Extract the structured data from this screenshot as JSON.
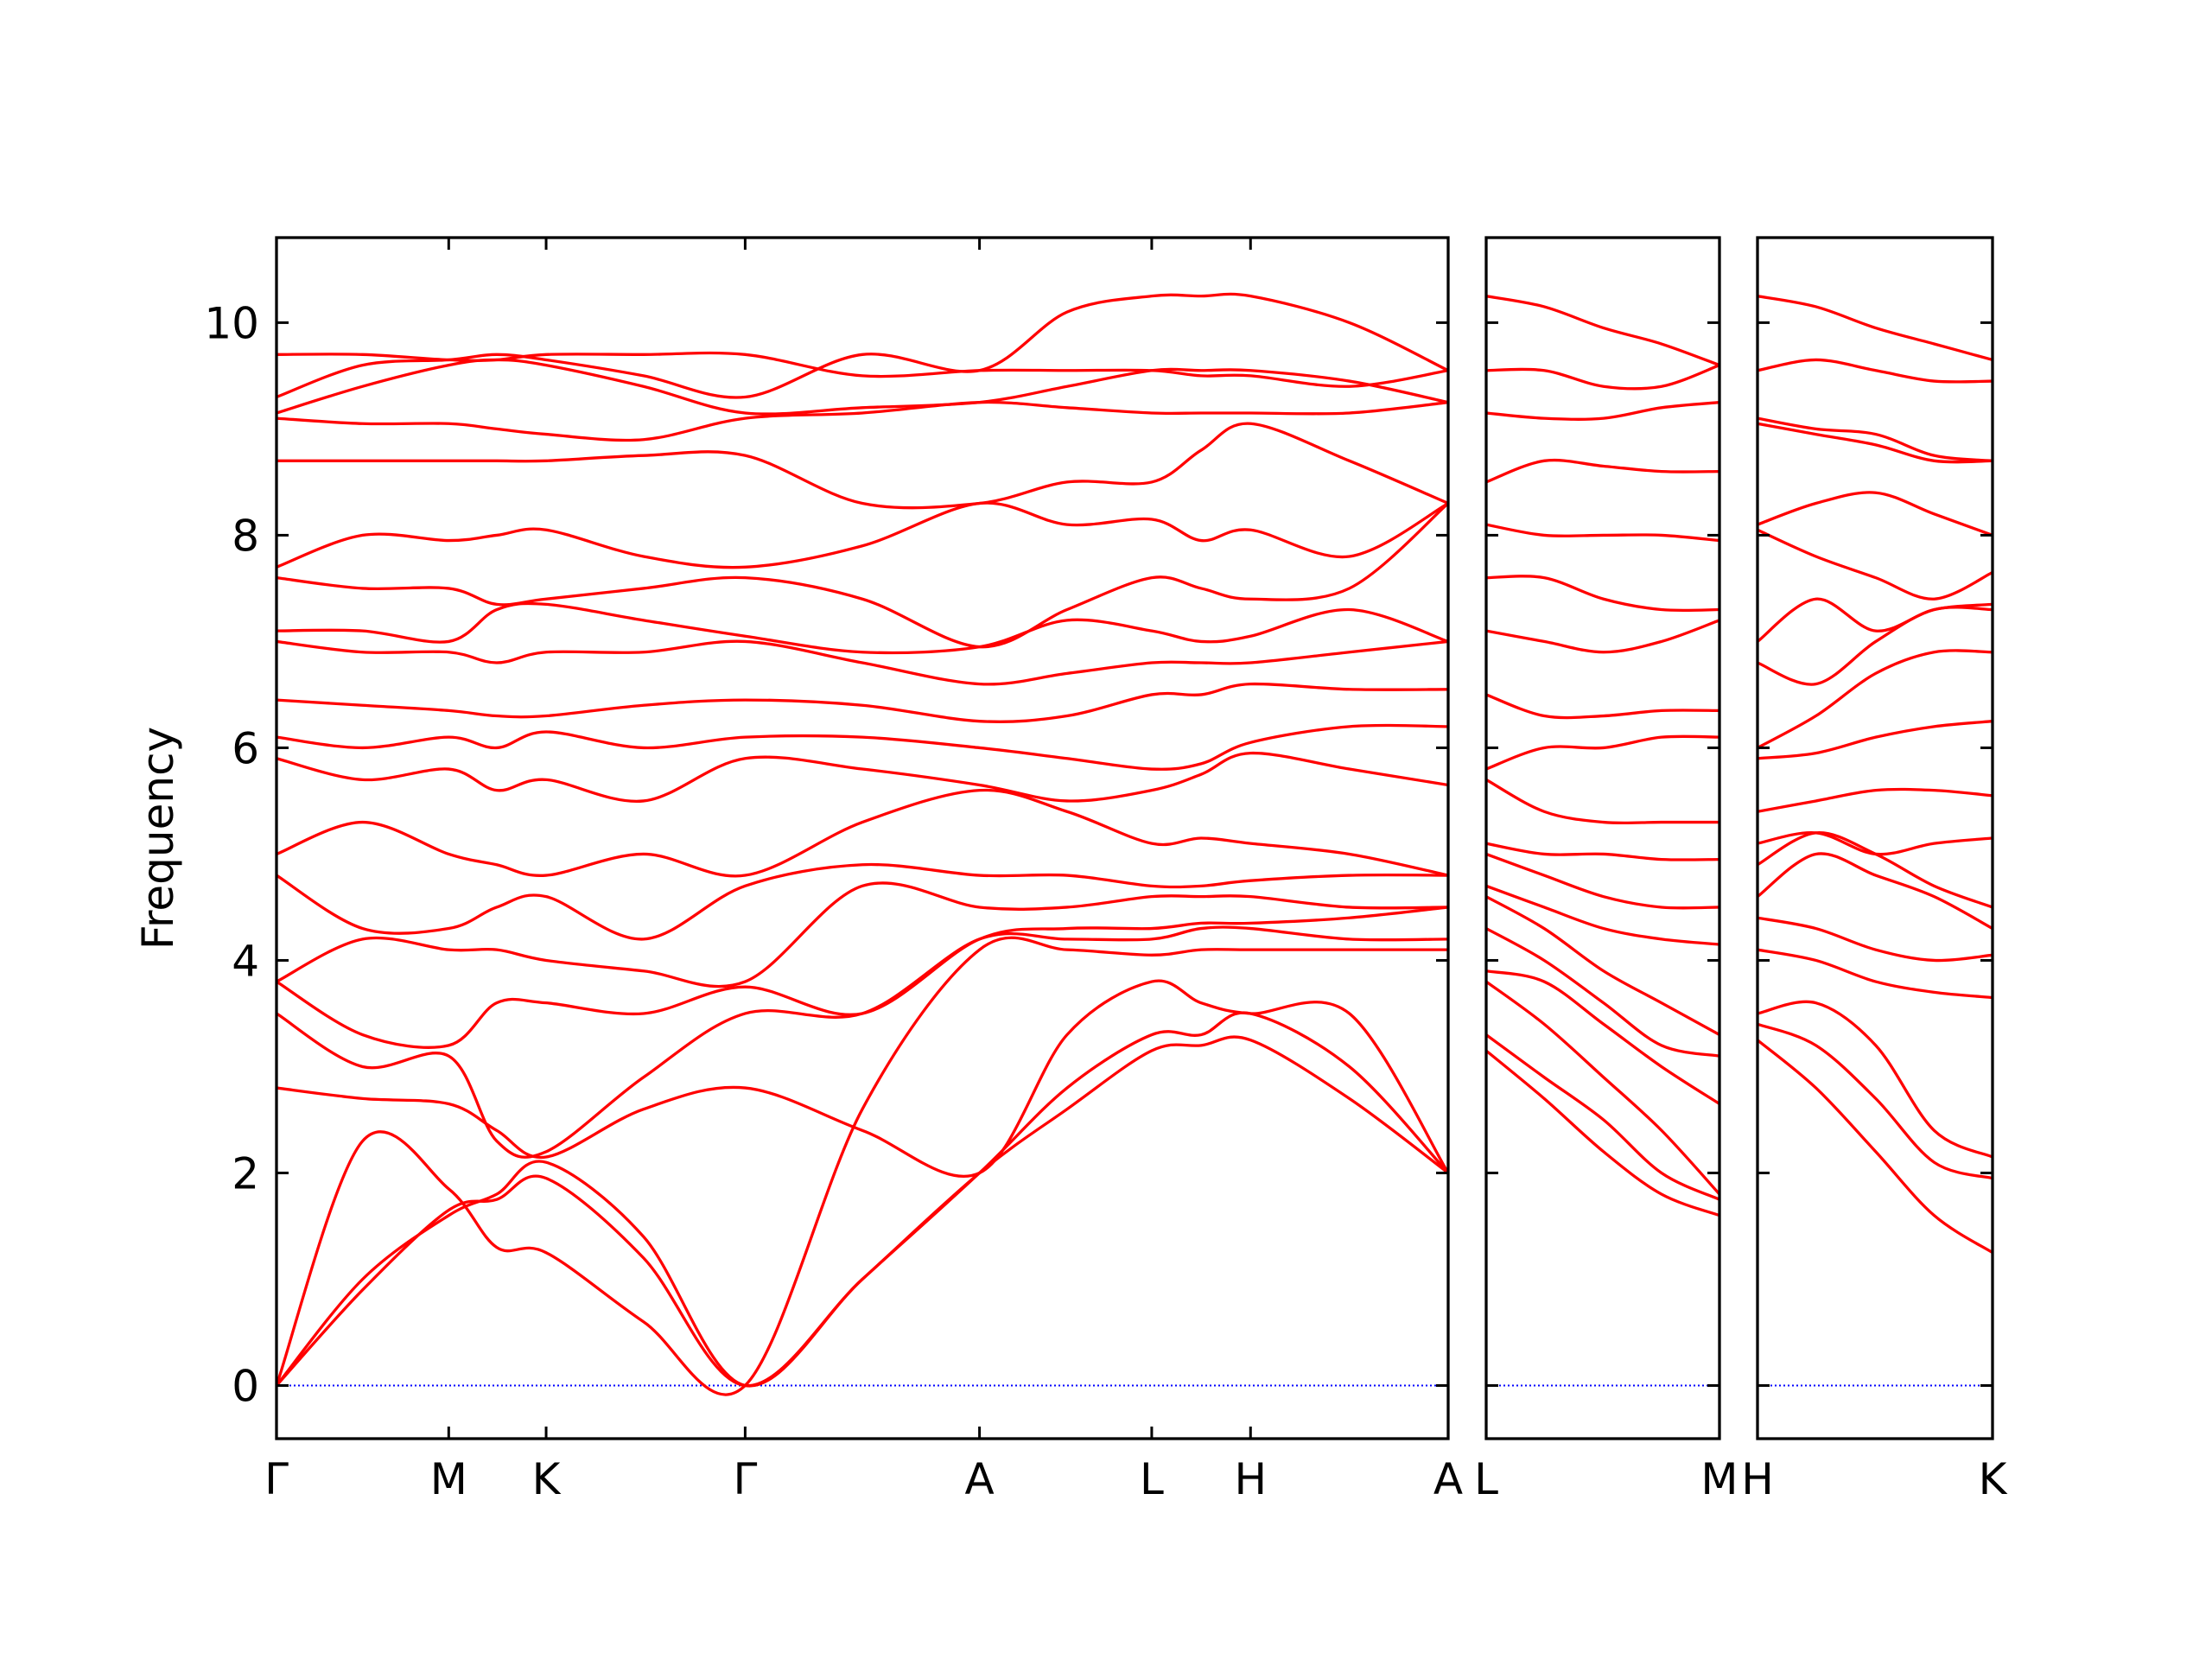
{
  "chart_data": [
    {
      "type": "line",
      "ylabel": "Frequency",
      "color": "#ff0000",
      "ylim": [
        -0.5,
        10.8
      ],
      "yticks": [
        0,
        2,
        4,
        6,
        8,
        10
      ],
      "show_ytick_labels": true,
      "zero_line": {
        "value": 0,
        "color": "#0000ff"
      },
      "xlim": [
        0,
        8.3
      ],
      "xticks": [
        {
          "value": 0,
          "label": "Γ"
        },
        {
          "value": 1.22,
          "label": "M"
        },
        {
          "value": 1.91,
          "label": "K"
        },
        {
          "value": 3.32,
          "label": "Γ"
        },
        {
          "value": 4.98,
          "label": "A"
        },
        {
          "value": 6.2,
          "label": "L"
        },
        {
          "value": 6.9,
          "label": "H"
        },
        {
          "value": 8.3,
          "label": "A"
        }
      ],
      "x": [
        0,
        0.61,
        1.22,
        1.56,
        1.91,
        2.6,
        3.32,
        4.15,
        4.98,
        5.6,
        6.2,
        6.55,
        6.9,
        7.6,
        8.3
      ],
      "series": [
        {
          "values": [
            0,
            0.9,
            1.65,
            1.75,
            1.95,
            1.2,
            0,
            1.0,
            2.0,
            2.6,
            3.15,
            3.2,
            3.25,
            2.7,
            2.0
          ]
        },
        {
          "values": [
            0,
            1.0,
            1.6,
            1.8,
            2.1,
            1.4,
            0,
            1.0,
            2.0,
            2.8,
            3.3,
            3.3,
            3.5,
            3.0,
            2.0
          ]
        },
        {
          "values": [
            0,
            2.3,
            1.85,
            1.3,
            1.25,
            0.6,
            0,
            2.6,
            4.1,
            4.1,
            4.05,
            4.1,
            4.1,
            4.1,
            4.1
          ]
        },
        {
          "values": [
            2.8,
            2.7,
            2.65,
            2.4,
            2.15,
            2.6,
            2.8,
            2.4,
            2.0,
            3.3,
            3.8,
            3.6,
            3.5,
            3.5,
            2.0
          ]
        },
        {
          "values": [
            3.5,
            3.0,
            3.1,
            2.3,
            2.2,
            2.9,
            3.5,
            3.5,
            4.2,
            4.2,
            4.2,
            4.3,
            4.3,
            4.2,
            4.2
          ]
        },
        {
          "values": [
            3.8,
            3.3,
            3.2,
            3.6,
            3.6,
            3.5,
            3.75,
            3.5,
            4.2,
            4.3,
            4.3,
            4.35,
            4.35,
            4.4,
            4.5
          ]
        },
        {
          "values": [
            3.8,
            4.2,
            4.1,
            4.1,
            4.0,
            3.9,
            3.8,
            4.7,
            4.5,
            4.5,
            4.6,
            4.6,
            4.6,
            4.5,
            4.5
          ]
        },
        {
          "values": [
            4.8,
            4.3,
            4.3,
            4.5,
            4.6,
            4.2,
            4.7,
            4.9,
            4.8,
            4.8,
            4.7,
            4.7,
            4.75,
            4.8,
            4.8
          ]
        },
        {
          "values": [
            5.0,
            5.3,
            5.0,
            4.9,
            4.8,
            5.0,
            4.8,
            5.3,
            5.6,
            5.4,
            5.1,
            5.15,
            5.1,
            5.0,
            4.8
          ]
        },
        {
          "values": [
            5.9,
            5.7,
            5.8,
            5.6,
            5.7,
            5.5,
            5.9,
            5.8,
            5.65,
            5.5,
            5.6,
            5.75,
            5.95,
            5.8,
            5.65
          ]
        },
        {
          "values": [
            6.1,
            6.0,
            6.1,
            6.0,
            6.15,
            6.0,
            6.1,
            6.1,
            6.0,
            5.9,
            5.8,
            5.85,
            6.05,
            6.2,
            6.2
          ]
        },
        {
          "values": [
            6.45,
            6.4,
            6.35,
            6.3,
            6.3,
            6.4,
            6.45,
            6.4,
            6.25,
            6.3,
            6.5,
            6.5,
            6.6,
            6.55,
            6.55
          ]
        },
        {
          "values": [
            7.0,
            6.9,
            6.9,
            6.8,
            6.9,
            6.9,
            7.0,
            6.8,
            6.6,
            6.7,
            6.8,
            6.8,
            6.8,
            6.9,
            7.0
          ]
        },
        {
          "values": [
            7.1,
            7.1,
            7.0,
            7.3,
            7.35,
            7.2,
            7.05,
            6.9,
            6.95,
            7.2,
            7.1,
            7.0,
            7.05,
            7.3,
            7.0
          ]
        },
        {
          "values": [
            7.6,
            7.5,
            7.5,
            7.35,
            7.4,
            7.5,
            7.6,
            7.4,
            6.95,
            7.3,
            7.6,
            7.5,
            7.4,
            7.5,
            8.3
          ]
        },
        {
          "values": [
            7.7,
            8.0,
            7.95,
            8.0,
            8.05,
            7.8,
            7.7,
            7.9,
            8.3,
            8.1,
            8.15,
            7.95,
            8.05,
            7.8,
            8.3
          ]
        },
        {
          "values": [
            8.7,
            8.7,
            8.7,
            8.7,
            8.7,
            8.75,
            8.75,
            8.3,
            8.3,
            8.5,
            8.5,
            8.8,
            9.05,
            8.7,
            8.3
          ]
        },
        {
          "values": [
            9.1,
            9.05,
            9.05,
            9.0,
            8.95,
            8.9,
            9.1,
            9.15,
            9.25,
            9.2,
            9.15,
            9.15,
            9.15,
            9.15,
            9.25
          ]
        },
        {
          "values": [
            9.15,
            9.4,
            9.6,
            9.65,
            9.6,
            9.4,
            9.15,
            9.2,
            9.25,
            9.4,
            9.55,
            9.55,
            9.55,
            9.45,
            9.25
          ]
        },
        {
          "values": [
            9.3,
            9.6,
            9.65,
            9.7,
            9.65,
            9.5,
            9.3,
            9.7,
            9.55,
            10.1,
            10.25,
            10.25,
            10.25,
            10.0,
            9.55
          ]
        },
        {
          "values": [
            9.7,
            9.7,
            9.65,
            9.65,
            9.7,
            9.7,
            9.7,
            9.5,
            9.55,
            9.55,
            9.55,
            9.5,
            9.5,
            9.4,
            9.55
          ]
        }
      ]
    },
    {
      "type": "line",
      "color": "#ff0000",
      "ylim": [
        -0.5,
        10.8
      ],
      "yticks": [
        0,
        2,
        4,
        6,
        8,
        10
      ],
      "show_ytick_labels": false,
      "zero_line": {
        "value": 0,
        "color": "#0000ff"
      },
      "xlim": [
        0,
        1.65
      ],
      "xticks": [
        {
          "value": 0,
          "label": "L"
        },
        {
          "value": 1.65,
          "label": "M"
        }
      ],
      "x": [
        0,
        0.41,
        0.83,
        1.24,
        1.65
      ],
      "series": [
        {
          "values": [
            3.15,
            2.7,
            2.2,
            1.8,
            1.6
          ]
        },
        {
          "values": [
            3.3,
            2.9,
            2.5,
            2.0,
            1.75
          ]
        },
        {
          "values": [
            3.8,
            3.4,
            2.9,
            2.4,
            1.8
          ]
        },
        {
          "values": [
            3.9,
            3.8,
            3.4,
            3.0,
            2.65
          ]
        },
        {
          "values": [
            4.3,
            4.0,
            3.6,
            3.2,
            3.1
          ]
        },
        {
          "values": [
            4.6,
            4.3,
            3.9,
            3.6,
            3.3
          ]
        },
        {
          "values": [
            4.7,
            4.5,
            4.3,
            4.2,
            4.15
          ]
        },
        {
          "values": [
            5.0,
            4.8,
            4.6,
            4.5,
            4.5
          ]
        },
        {
          "values": [
            5.1,
            5.0,
            5.0,
            4.95,
            4.95
          ]
        },
        {
          "values": [
            5.7,
            5.4,
            5.3,
            5.3,
            5.3
          ]
        },
        {
          "values": [
            5.8,
            6.0,
            6.0,
            6.1,
            6.1
          ]
        },
        {
          "values": [
            6.5,
            6.3,
            6.3,
            6.35,
            6.35
          ]
        },
        {
          "values": [
            7.1,
            7.0,
            6.9,
            7.0,
            7.2
          ]
        },
        {
          "values": [
            7.6,
            7.6,
            7.4,
            7.3,
            7.3
          ]
        },
        {
          "values": [
            8.1,
            8.0,
            8.0,
            8.0,
            7.95
          ]
        },
        {
          "values": [
            8.5,
            8.7,
            8.65,
            8.6,
            8.6
          ]
        },
        {
          "values": [
            9.15,
            9.1,
            9.1,
            9.2,
            9.25
          ]
        },
        {
          "values": [
            9.55,
            9.55,
            9.4,
            9.4,
            9.6
          ]
        },
        {
          "values": [
            10.25,
            10.15,
            9.95,
            9.8,
            9.6
          ]
        }
      ]
    },
    {
      "type": "line",
      "color": "#ff0000",
      "ylim": [
        -0.5,
        10.8
      ],
      "yticks": [
        0,
        2,
        4,
        6,
        8,
        10
      ],
      "show_ytick_labels": false,
      "zero_line": {
        "value": 0,
        "color": "#0000ff"
      },
      "xlim": [
        0,
        1.65
      ],
      "xticks": [
        {
          "value": 0,
          "label": "H"
        },
        {
          "value": 1.65,
          "label": "K"
        }
      ],
      "x": [
        0,
        0.41,
        0.83,
        1.24,
        1.65
      ],
      "series": [
        {
          "values": [
            3.25,
            2.8,
            2.2,
            1.6,
            1.25
          ]
        },
        {
          "values": [
            3.4,
            3.2,
            2.7,
            2.1,
            1.95
          ]
        },
        {
          "values": [
            3.5,
            3.6,
            3.2,
            2.4,
            2.15
          ]
        },
        {
          "values": [
            4.1,
            4.0,
            3.8,
            3.7,
            3.65
          ]
        },
        {
          "values": [
            4.4,
            4.3,
            4.1,
            4.0,
            4.05
          ]
        },
        {
          "values": [
            4.6,
            5.0,
            4.8,
            4.6,
            4.3
          ]
        },
        {
          "values": [
            4.9,
            5.2,
            5.0,
            4.7,
            4.5
          ]
        },
        {
          "values": [
            5.1,
            5.2,
            5.0,
            5.1,
            5.15
          ]
        },
        {
          "values": [
            5.4,
            5.5,
            5.6,
            5.6,
            5.55
          ]
        },
        {
          "values": [
            5.9,
            5.95,
            6.1,
            6.2,
            6.25
          ]
        },
        {
          "values": [
            6.0,
            6.3,
            6.7,
            6.9,
            6.9
          ]
        },
        {
          "values": [
            6.8,
            6.6,
            7.0,
            7.3,
            7.3
          ]
        },
        {
          "values": [
            7.0,
            7.4,
            7.1,
            7.3,
            7.35
          ]
        },
        {
          "values": [
            8.05,
            7.8,
            7.6,
            7.4,
            7.65
          ]
        },
        {
          "values": [
            8.1,
            8.3,
            8.4,
            8.2,
            8.0
          ]
        },
        {
          "values": [
            9.05,
            8.95,
            8.85,
            8.7,
            8.7
          ]
        },
        {
          "values": [
            9.1,
            9.0,
            8.95,
            8.75,
            8.7
          ]
        },
        {
          "values": [
            9.55,
            9.65,
            9.55,
            9.45,
            9.45
          ]
        },
        {
          "values": [
            10.25,
            10.15,
            9.95,
            9.8,
            9.65
          ]
        }
      ]
    }
  ]
}
